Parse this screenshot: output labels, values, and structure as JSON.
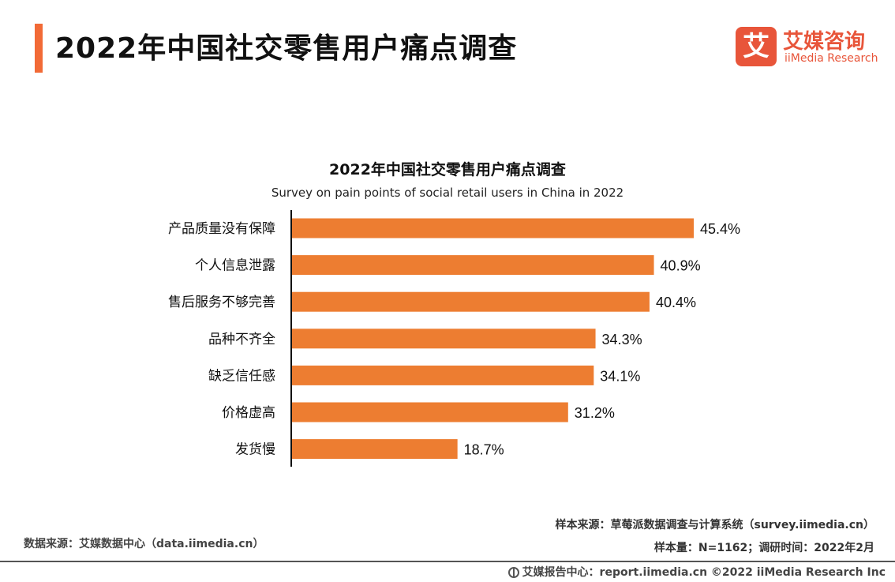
{
  "header": {
    "title": "2022年中国社交零售用户痛点调查",
    "accent_color": "#F26A36"
  },
  "logo": {
    "mark": "艾",
    "name_cn": "艾媒咨询",
    "name_en": "iiMedia Research",
    "color": "#E8553A"
  },
  "chart_data": {
    "type": "bar",
    "orientation": "horizontal",
    "title": "2022年中国社交零售用户痛点调查",
    "subtitle": "Survey on pain points of social retail users in China in 2022",
    "categories": [
      "产品质量没有保障",
      "个人信息泄露",
      "售后服务不够完善",
      "品种不齐全",
      "缺乏信任感",
      "价格虚高",
      "发货慢"
    ],
    "values": [
      45.4,
      40.9,
      40.4,
      34.3,
      34.1,
      31.2,
      18.7
    ],
    "value_labels": [
      "45.4%",
      "40.9%",
      "40.4%",
      "34.3%",
      "34.1%",
      "31.2%",
      "18.7%"
    ],
    "unit": "%",
    "xlim": [
      0,
      45.4
    ],
    "bar_color": "#ED7D31",
    "grid": false,
    "legend": "none"
  },
  "sources": {
    "sample_source": "样本来源：草莓派数据调查与计算系统（survey.iimedia.cn）",
    "sample_size": "样本量：N=1162；调研时间：2022年2月",
    "data_source": "数据来源：艾媒数据中心（data.iimedia.cn）"
  },
  "footer": {
    "icon": "globe-icon",
    "text": "艾媒报告中心：report.iimedia.cn  ©2022  iiMedia Research  Inc"
  }
}
